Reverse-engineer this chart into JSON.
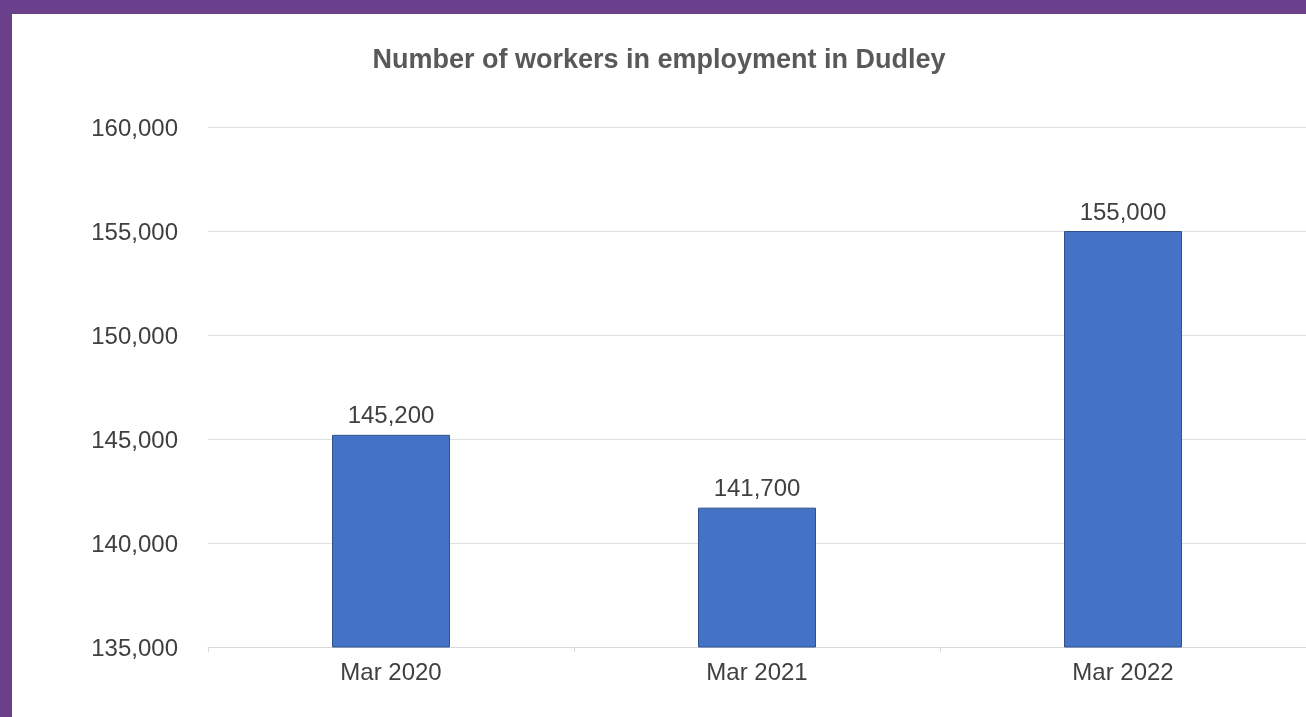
{
  "chart_data": {
    "type": "bar",
    "title": "Number of workers in employment in Dudley",
    "categories": [
      "Mar 2020",
      "Mar 2021",
      "Mar 2022"
    ],
    "values": [
      145200,
      141700,
      155000
    ],
    "color": "#4472c4",
    "value_labels": [
      "145,200",
      "141,700",
      "155,000"
    ],
    "ylim": [
      135000,
      160000
    ],
    "yticks": [
      {
        "value": 135000,
        "label": "135,000"
      },
      {
        "value": 140000,
        "label": "140,000"
      },
      {
        "value": 145000,
        "label": "145,000"
      },
      {
        "value": 150000,
        "label": "150,000"
      },
      {
        "value": 155000,
        "label": "155,000"
      },
      {
        "value": 160000,
        "label": "160,000"
      }
    ],
    "grid": "y"
  }
}
